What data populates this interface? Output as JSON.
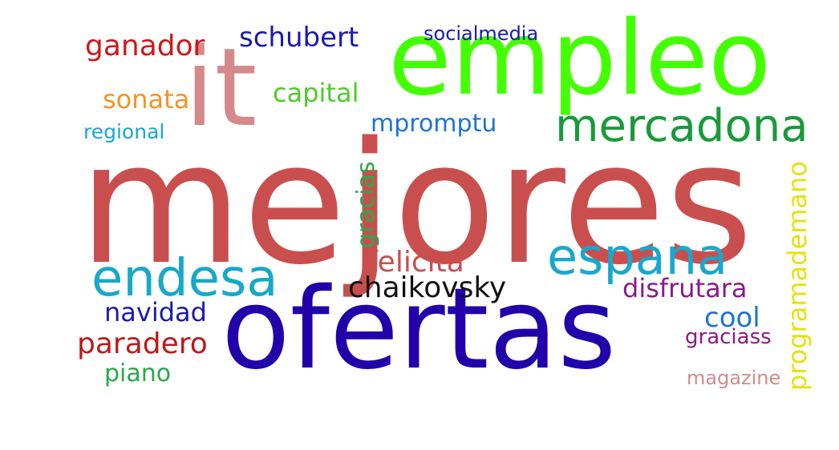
{
  "words": [
    {
      "text": "mejores",
      "color": "#c94f4f",
      "orientation": "horizontal"
    },
    {
      "text": "ofertas",
      "color": "#2200aa",
      "orientation": "horizontal"
    },
    {
      "text": "empleo",
      "color": "#44ff00",
      "orientation": "horizontal"
    },
    {
      "text": "it",
      "color": "#d48a8a",
      "orientation": "horizontal"
    },
    {
      "text": "mercadona",
      "color": "#1a9a3a",
      "orientation": "horizontal"
    },
    {
      "text": "espana",
      "color": "#18a8cc",
      "orientation": "horizontal"
    },
    {
      "text": "endesa",
      "color": "#18a8c8",
      "orientation": "horizontal"
    },
    {
      "text": "schubert",
      "color": "#1a1ab0",
      "orientation": "horizontal"
    },
    {
      "text": "socialmedia",
      "color": "#1a1ab0",
      "orientation": "horizontal"
    },
    {
      "text": "ganador",
      "color": "#d01818",
      "orientation": "horizontal"
    },
    {
      "text": "sonata",
      "color": "#f09428",
      "orientation": "horizontal"
    },
    {
      "text": "capital",
      "color": "#4ccc28",
      "orientation": "horizontal"
    },
    {
      "text": "mpromptu",
      "color": "#1e74cc",
      "orientation": "horizontal"
    },
    {
      "text": "regional",
      "color": "#18a8cc",
      "orientation": "horizontal"
    },
    {
      "text": "gracias",
      "color": "#2aa84a",
      "orientation": "vertical"
    },
    {
      "text": "programademano",
      "color": "#e8e010",
      "orientation": "vertical"
    },
    {
      "text": "felicita",
      "color": "#c94f4f",
      "orientation": "horizontal"
    },
    {
      "text": "chaikovsky",
      "color": "#111111",
      "orientation": "horizontal"
    },
    {
      "text": "disfrutara",
      "color": "#8a1a8a",
      "orientation": "horizontal"
    },
    {
      "text": "navidad",
      "color": "#1a1ab0",
      "orientation": "horizontal"
    },
    {
      "text": "cool",
      "color": "#1e74cc",
      "orientation": "horizontal"
    },
    {
      "text": "paradero",
      "color": "#c01818",
      "orientation": "horizontal"
    },
    {
      "text": "graciass",
      "color": "#8a1a8a",
      "orientation": "horizontal"
    },
    {
      "text": "piano",
      "color": "#2aa84a",
      "orientation": "horizontal"
    },
    {
      "text": "magazine",
      "color": "#d48a8a",
      "orientation": "horizontal"
    }
  ]
}
